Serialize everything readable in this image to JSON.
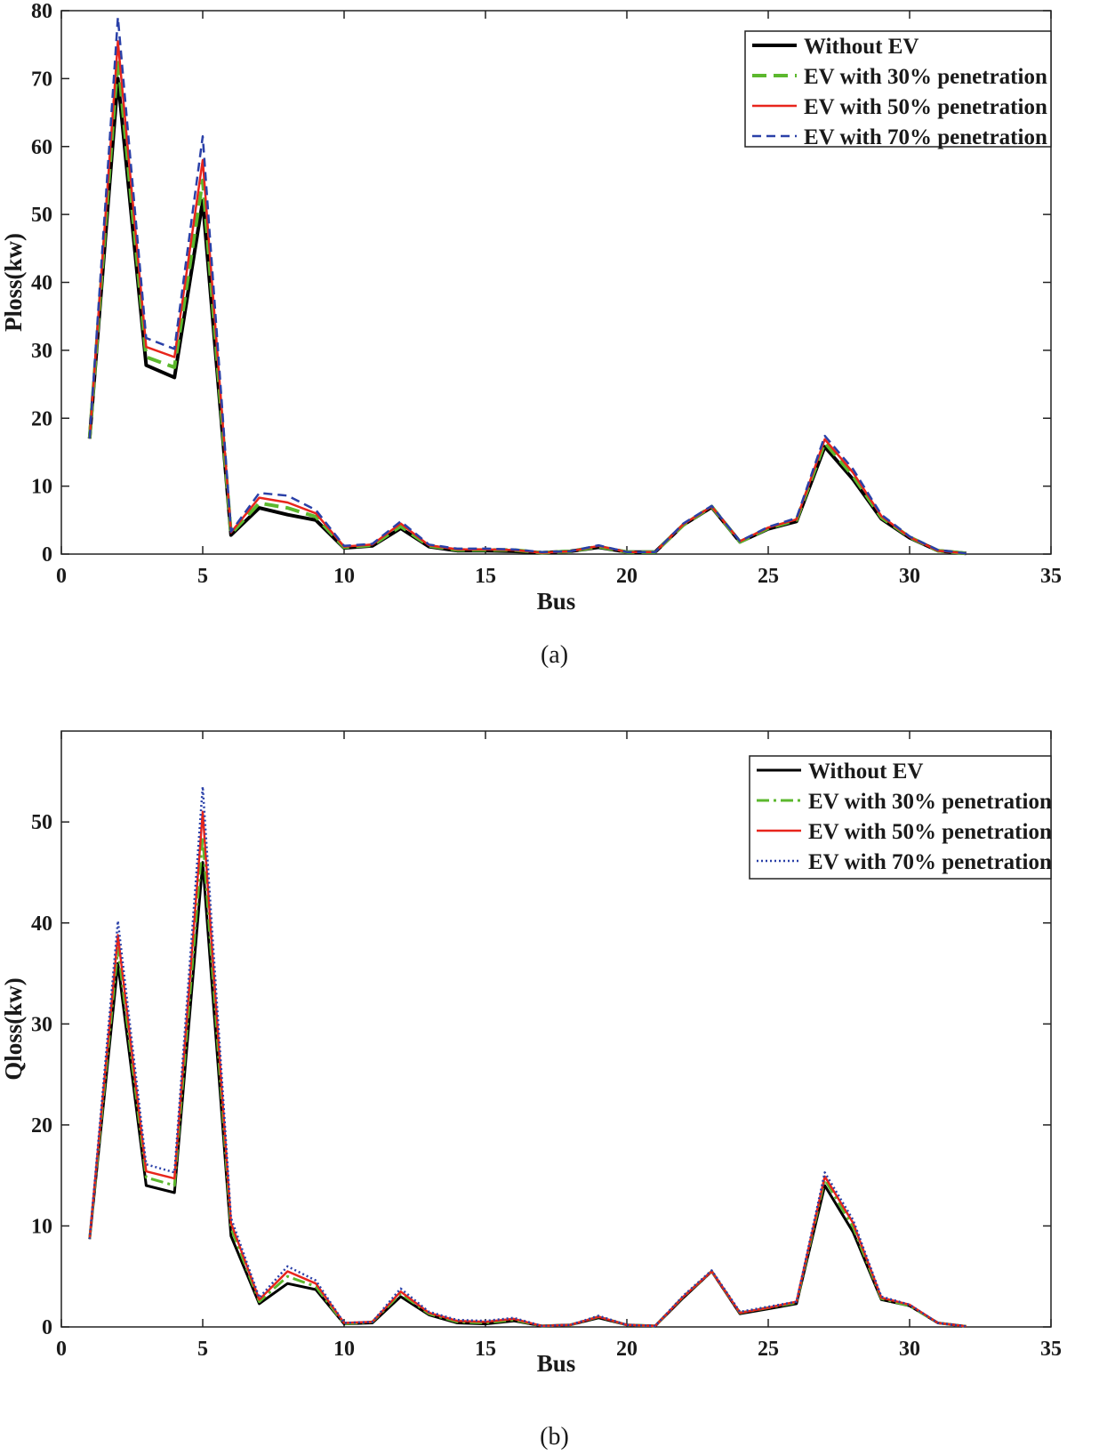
{
  "chart_data": [
    {
      "type": "line",
      "caption": "(a)",
      "xlabel": "Bus",
      "ylabel": "Ploss(kw)",
      "xlim": [
        0,
        35
      ],
      "ylim": [
        0,
        80
      ],
      "xticks": [
        0,
        5,
        10,
        15,
        20,
        25,
        30,
        35
      ],
      "yticks": [
        0,
        10,
        20,
        30,
        40,
        50,
        60,
        70,
        80
      ],
      "legend_position": "top-right",
      "x": [
        1,
        2,
        3,
        4,
        5,
        6,
        7,
        8,
        9,
        10,
        11,
        12,
        13,
        14,
        15,
        16,
        17,
        18,
        19,
        20,
        21,
        22,
        23,
        24,
        25,
        26,
        27,
        28,
        29,
        30,
        31,
        32
      ],
      "series": [
        {
          "name": "Without EV",
          "color": "#000000",
          "dash": "solid",
          "width": 4,
          "values": [
            17,
            70,
            27.8,
            26,
            52,
            2.8,
            6.8,
            5.8,
            5,
            0.9,
            1.2,
            3.8,
            1.1,
            0.5,
            0.5,
            0.4,
            0.2,
            0.4,
            1,
            0.3,
            0.3,
            4.3,
            6.9,
            1.8,
            3.7,
            4.8,
            15.8,
            11,
            5.2,
            2.4,
            0.5,
            0.1
          ]
        },
        {
          "name": "EV with 30% penetration",
          "color": "#5cb82e",
          "dash": "dashed",
          "width": 4,
          "values": [
            17,
            73,
            29,
            27.5,
            55,
            3,
            7.5,
            6.8,
            5.5,
            1,
            1.3,
            4.1,
            1.2,
            0.6,
            0.6,
            0.6,
            0.2,
            0.4,
            1.1,
            0.3,
            0.3,
            4.3,
            7,
            1.8,
            3.8,
            5,
            16.4,
            11.5,
            5.4,
            2.5,
            0.5,
            0.1
          ]
        },
        {
          "name": "EV with 50% penetration",
          "color": "#e8251c",
          "dash": "solid",
          "width": 2.5,
          "values": [
            17,
            75.5,
            30.5,
            29,
            58,
            3.2,
            8.3,
            7.6,
            6,
            1.1,
            1.4,
            4.5,
            1.3,
            0.7,
            0.7,
            0.6,
            0.2,
            0.4,
            1.2,
            0.3,
            0.3,
            4.4,
            7,
            1.9,
            3.9,
            5.1,
            16.9,
            12,
            5.6,
            2.5,
            0.5,
            0.1
          ]
        },
        {
          "name": "EV with 70% penetration",
          "color": "#2a40a8",
          "dash": "dashed-fine",
          "width": 2.5,
          "values": [
            17,
            79,
            31.8,
            30.2,
            61.5,
            3.3,
            9,
            8.6,
            6.5,
            1.2,
            1.5,
            4.8,
            1.4,
            0.8,
            0.8,
            0.7,
            0.3,
            0.4,
            1.3,
            0.3,
            0.3,
            4.5,
            7.1,
            1.9,
            4,
            5.3,
            17.4,
            12.5,
            5.8,
            2.6,
            0.6,
            0.1
          ]
        }
      ]
    },
    {
      "type": "line",
      "caption": "(b)",
      "xlabel": "Bus",
      "ylabel": "Qloss(kw)",
      "xlim": [
        0,
        35
      ],
      "ylim": [
        0,
        59
      ],
      "xticks": [
        0,
        5,
        10,
        15,
        20,
        25,
        30,
        35
      ],
      "yticks": [
        0,
        10,
        20,
        30,
        40,
        50
      ],
      "legend_position": "top-right",
      "x": [
        1,
        2,
        3,
        4,
        5,
        6,
        7,
        8,
        9,
        10,
        11,
        12,
        13,
        14,
        15,
        16,
        17,
        18,
        19,
        20,
        21,
        22,
        23,
        24,
        25,
        26,
        27,
        28,
        29,
        30,
        31,
        32
      ],
      "series": [
        {
          "name": "Without EV",
          "color": "#000000",
          "dash": "solid",
          "width": 3,
          "values": [
            8.7,
            36,
            14,
            13.3,
            46,
            9,
            2.3,
            4.3,
            3.7,
            0.3,
            0.4,
            3,
            1.2,
            0.4,
            0.3,
            0.6,
            0.1,
            0.2,
            0.9,
            0.2,
            0.1,
            2.9,
            5.5,
            1.3,
            1.8,
            2.3,
            14,
            9.4,
            2.7,
            2.1,
            0.4,
            0.05
          ]
        },
        {
          "name": "EV with 30% penetration",
          "color": "#5cb82e",
          "dash": "dashdot",
          "width": 3,
          "values": [
            8.7,
            37.5,
            14.8,
            14,
            48.5,
            9.8,
            2.5,
            5,
            4,
            0.3,
            0.5,
            3.3,
            1.3,
            0.5,
            0.4,
            0.7,
            0.1,
            0.2,
            1,
            0.2,
            0.1,
            3,
            5.5,
            1.4,
            1.9,
            2.4,
            14.6,
            9.9,
            2.8,
            2.1,
            0.4,
            0.05
          ]
        },
        {
          "name": "EV with 50% penetration",
          "color": "#e8251c",
          "dash": "solid",
          "width": 2.5,
          "values": [
            8.7,
            38.8,
            15.4,
            14.7,
            51,
            10.3,
            2.7,
            5.5,
            4.3,
            0.4,
            0.5,
            3.5,
            1.4,
            0.6,
            0.5,
            0.8,
            0.1,
            0.2,
            1,
            0.2,
            0.1,
            3,
            5.5,
            1.4,
            1.9,
            2.5,
            14.9,
            10.3,
            2.9,
            2.2,
            0.4,
            0.05
          ]
        },
        {
          "name": "EV with 70% penetration",
          "color": "#2a40a8",
          "dash": "dotted",
          "width": 2.5,
          "values": [
            8.7,
            40.2,
            16.1,
            15.3,
            53.5,
            10.8,
            2.9,
            6,
            4.6,
            0.4,
            0.5,
            3.8,
            1.5,
            0.7,
            0.6,
            0.9,
            0.1,
            0.2,
            1.1,
            0.2,
            0.1,
            3.1,
            5.6,
            1.5,
            2,
            2.5,
            15.3,
            10.6,
            3,
            2.2,
            0.4,
            0.05
          ]
        }
      ]
    }
  ]
}
